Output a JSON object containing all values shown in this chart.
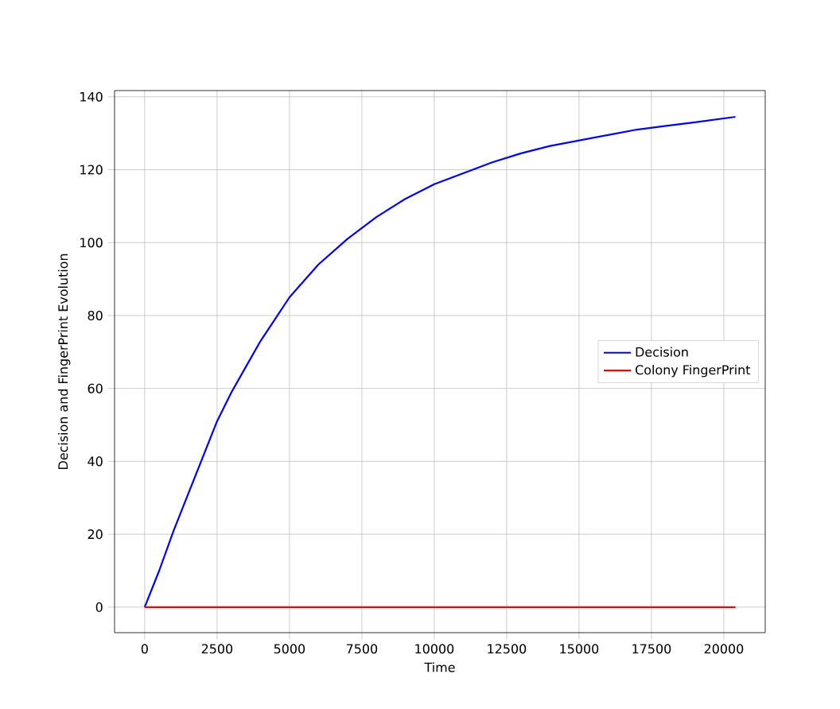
{
  "chart_data": {
    "type": "line",
    "xlabel": "Time",
    "ylabel": "Decision and FingerPrint Evolution",
    "series": [
      {
        "name": "Decision",
        "color": "#0000ff",
        "x": [
          0,
          500,
          1000,
          1500,
          2000,
          2500,
          3000,
          3500,
          4000,
          4500,
          5000,
          6000,
          7000,
          8000,
          9000,
          10000,
          11000,
          12000,
          13000,
          14000,
          15000,
          16000,
          17000,
          18000,
          19000,
          20400
        ],
        "values": [
          0,
          10,
          21,
          31,
          41,
          51,
          59,
          66,
          73,
          79,
          85,
          94,
          101,
          107,
          112,
          116,
          119,
          122,
          124.5,
          126.5,
          128,
          129.5,
          131,
          132,
          133,
          134.5
        ]
      },
      {
        "name": "Colony FingerPrint",
        "color": "#ff0000",
        "x": [
          0,
          20400
        ],
        "values": [
          0,
          0
        ]
      }
    ],
    "xlim": [
      -1040,
      21430
    ],
    "ylim": [
      -7,
      141.7
    ],
    "xticks": [
      0,
      2500,
      5000,
      7500,
      10000,
      12500,
      15000,
      17500,
      20000
    ],
    "yticks": [
      0,
      20,
      40,
      60,
      80,
      100,
      120,
      140
    ],
    "grid": true,
    "legend": "right",
    "marker": "none",
    "line_style": "solid"
  }
}
